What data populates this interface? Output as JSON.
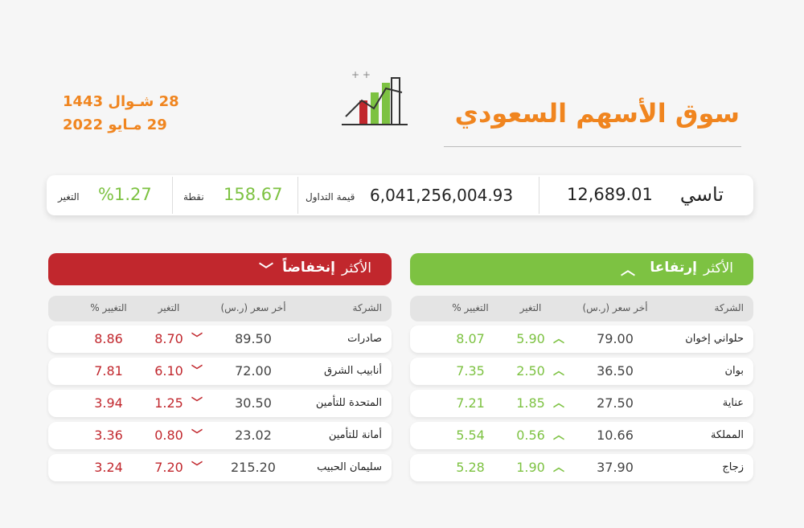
{
  "header": {
    "title": "سوق الأسهم السعودي",
    "date_hijri": "28 شـوال 1443",
    "date_gregorian": "29 مـايو 2022"
  },
  "summary": {
    "index_name": "تاسي",
    "index_value": "12,689.01",
    "turnover_label": "قيمة التداول",
    "turnover_value": "6,041,256,004.93",
    "points_label": "نقطة",
    "points_value": "158.67",
    "change_label": "التغير",
    "change_value": "%1.27"
  },
  "gainers": {
    "title_prefix": "الأكثر",
    "title": "إرتفاعا",
    "columns": [
      "الشركة",
      "أخر سعر (ر.س)",
      "التغير",
      "التغيير %"
    ],
    "rows": [
      [
        "حلواني إخوان",
        "79.00",
        "5.90",
        "8.07"
      ],
      [
        "بوان",
        "36.50",
        "2.50",
        "7.35"
      ],
      [
        "عناية",
        "27.50",
        "1.85",
        "7.21"
      ],
      [
        "المملكة",
        "10.66",
        "0.56",
        "5.54"
      ],
      [
        "زجاج",
        "37.90",
        "1.90",
        "5.28"
      ]
    ]
  },
  "losers": {
    "title_prefix": "الأكثر",
    "title": "إنخفاضاً",
    "columns": [
      "الشركة",
      "أخر سعر (ر.س)",
      "التغير",
      "التغيير %"
    ],
    "rows": [
      [
        "صادرات",
        "89.50",
        "8.70",
        "8.86"
      ],
      [
        "أنابيب الشرق",
        "72.00",
        "6.10",
        "7.81"
      ],
      [
        "المتحدة للتأمين",
        "30.50",
        "1.25",
        "3.94"
      ],
      [
        "أمانة للتأمين",
        "23.02",
        "0.80",
        "3.36"
      ],
      [
        "سليمان الحبيب",
        "215.20",
        "7.20",
        "3.24"
      ]
    ]
  }
}
